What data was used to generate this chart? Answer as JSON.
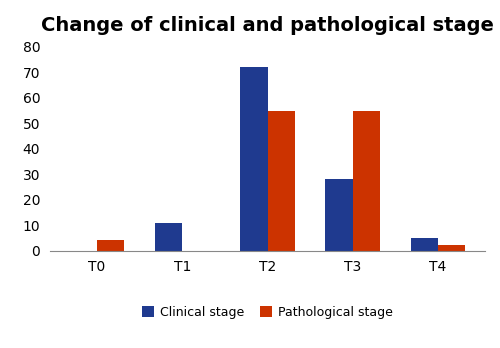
{
  "title": "Change of clinical and pathological stage",
  "categories": [
    "T0",
    "T1",
    "T2",
    "T3",
    "T4"
  ],
  "clinical_values": [
    0,
    11,
    72,
    28,
    5
  ],
  "pathological_values": [
    4,
    0,
    55,
    55,
    2
  ],
  "clinical_color": "#1F3A8F",
  "pathological_color": "#CC3300",
  "ylim": [
    0,
    82
  ],
  "yticks": [
    0,
    10,
    20,
    30,
    40,
    50,
    60,
    70,
    80
  ],
  "legend_labels": [
    "Clinical stage",
    "Pathological stage"
  ],
  "bar_width": 0.32,
  "title_fontsize": 14,
  "tick_fontsize": 10,
  "legend_fontsize": 9,
  "figure_facecolor": "#ffffff",
  "border_color": "#aaaaaa"
}
